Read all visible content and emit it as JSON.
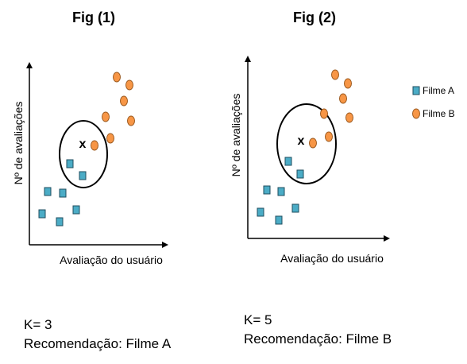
{
  "figures": [
    {
      "title": "Fig (1)",
      "xlabel": "Avaliação do usuário",
      "ylabel": "Nº de avaliações",
      "x_marker": "x",
      "k_label": "K= 3",
      "recommendation": "Recomendação: Filme A"
    },
    {
      "title": "Fig (2)",
      "xlabel": "Avaliação do usuário",
      "ylabel": "Nº de avaliações",
      "x_marker": "x",
      "k_label": "K= 5",
      "recommendation": "Recomendação: Filme B"
    }
  ],
  "legend": {
    "filme_a": "Filme A",
    "filme_b": "Filme B"
  },
  "colors": {
    "filme_a_fill": "#4bacc6",
    "filme_a_stroke": "#1f4e5f",
    "filme_b_fill": "#f79646",
    "filme_b_stroke": "#9c5a1f",
    "axis": "#000000",
    "circle": "#000000"
  }
}
